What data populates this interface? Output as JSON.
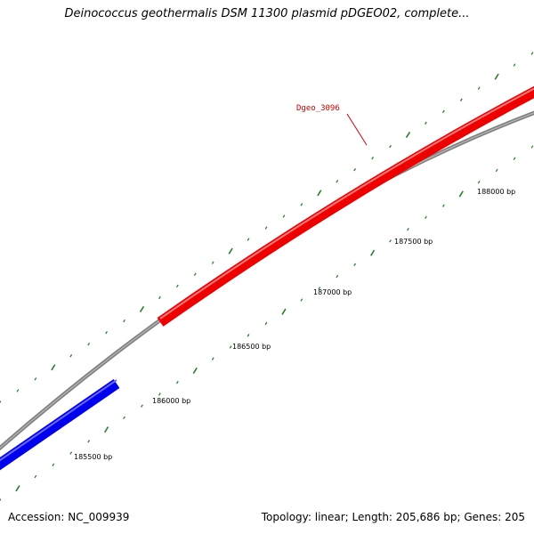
{
  "title": "Deinococcus geothermalis DSM 11300 plasmid pDGEO02, complete...",
  "footer": {
    "accession": "Accession: NC_009939",
    "summary": "Topology: linear; Length: 205,686 bp; Genes: 205"
  },
  "colors": {
    "backbone": "#808080",
    "tick": "#2e7d2e",
    "forward_gene": "#ee0000",
    "reverse_gene": "#0000ee",
    "gene_label": "#cc0000"
  },
  "genes": [
    {
      "name": "Dgeo_3096",
      "strand": "forward",
      "color": "#ee0000"
    },
    {
      "name": "",
      "strand": "reverse",
      "color": "#0000ee"
    }
  ],
  "scale_labels": [
    "185500 bp",
    "186000 bp",
    "186500 bp",
    "187000 bp",
    "187500 bp",
    "188000 bp"
  ]
}
